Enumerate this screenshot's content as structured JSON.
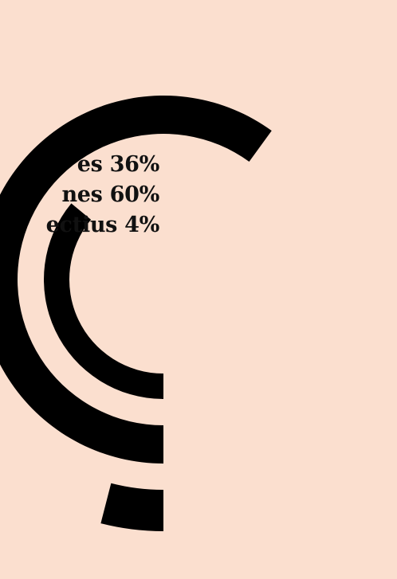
{
  "chart_data": {
    "type": "radial-bar",
    "series": [
      {
        "name": "Nes",
        "value": 36,
        "value_label": "36%"
      },
      {
        "name": "Ones",
        "value": 60,
        "value_label": "60%"
      },
      {
        "name": "Perspectius",
        "value": 4,
        "value_label": "4%"
      }
    ],
    "legend_labels": [
      "es 36%",
      "nes 60%",
      "ectius 4%"
    ],
    "colors": {
      "background": "#fbdfcf",
      "arc": "#000000",
      "text": "#111111"
    },
    "legend_placement": "left",
    "max_value": 100
  }
}
